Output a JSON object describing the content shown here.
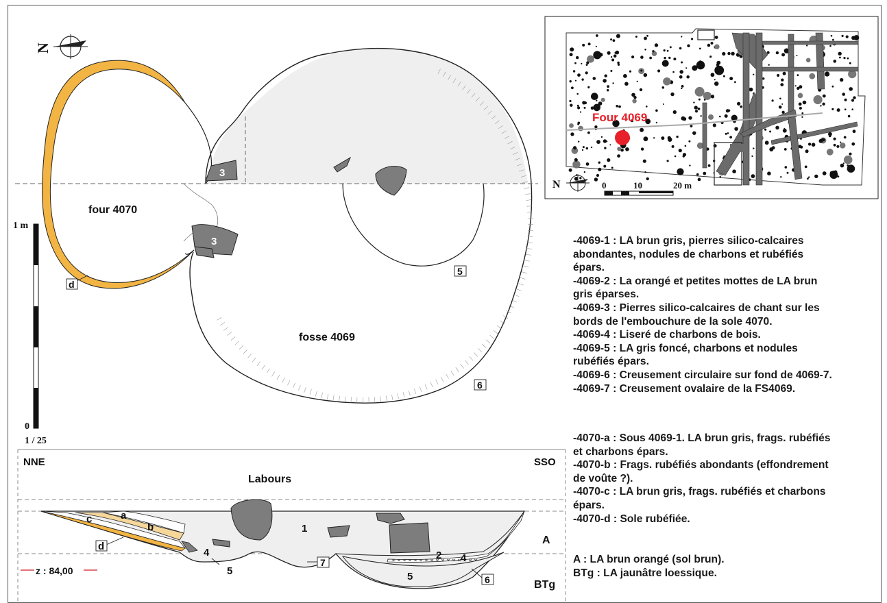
{
  "plan": {
    "north_letter": "N",
    "four_label": "four 4070",
    "fosse_label": "fosse 4069",
    "labels": {
      "stone1": "3",
      "stone2": "3",
      "fill5": "5",
      "cut6": "6",
      "d": "d"
    }
  },
  "scale_bar": {
    "top": "1 m",
    "bottom": "0",
    "ratio": "1 / 25"
  },
  "inset_map": {
    "four_label": "Four 4069",
    "north_letter": "N",
    "scale": {
      "t0": "0",
      "t10": "10",
      "t20": "20 m"
    },
    "marker_color": "#e8202a"
  },
  "section": {
    "left": "NNE",
    "right": "SSO",
    "labours": "Labours",
    "A": "A",
    "BTg": "BTg",
    "z": "z : 84,00",
    "labels": {
      "a": "a",
      "b": "b",
      "c": "c",
      "d": "d",
      "l1": "1",
      "l2": "2",
      "l4a": "4",
      "l4b": "4",
      "l5a": "5",
      "l5b": "5",
      "l6": "6",
      "l7": "7"
    }
  },
  "legend_4069": [
    "-4069-1 : LA brun gris, pierres silico-calcaires",
    "abondantes, nodules de charbons et rubéfiés",
    "épars.",
    "-4069-2 : La orangé et petites mottes de LA brun",
    "gris éparses.",
    "-4069-3 : Pierres silico-calcaires de chant sur les",
    "bords de l'embouchure de la sole 4070.",
    "-4069-4 : Liseré de charbons de bois.",
    "-4069-5 : LA gris foncé, charbons et nodules",
    "rubéfiés épars.",
    "-4069-6 : Creusement circulaire sur fond de 4069-7.",
    "-4069-7 : Creusement ovalaire de la FS4069."
  ],
  "legend_4070": [
    "-4070-a : Sous 4069-1. LA brun gris, frags. rubéfiés",
    "et charbons épars.",
    "-4070-b : Frags. rubéfiés abondants (effondrement",
    "de voûte ?).",
    "-4070-c : LA brun gris, frags. rubéfiés et charbons",
    "épars.",
    "-4070-d : Sole rubéfiée."
  ],
  "legend_soil": [
    "A : LA brun orangé (sol brun).",
    "BTg : LA jaunâtre loessique."
  ],
  "colors": {
    "sole": "#f2b443",
    "sole_light": "#f6d79a",
    "fill_light": "#efefef",
    "stone": "#7d7d7d",
    "marker": "#e8202a"
  }
}
